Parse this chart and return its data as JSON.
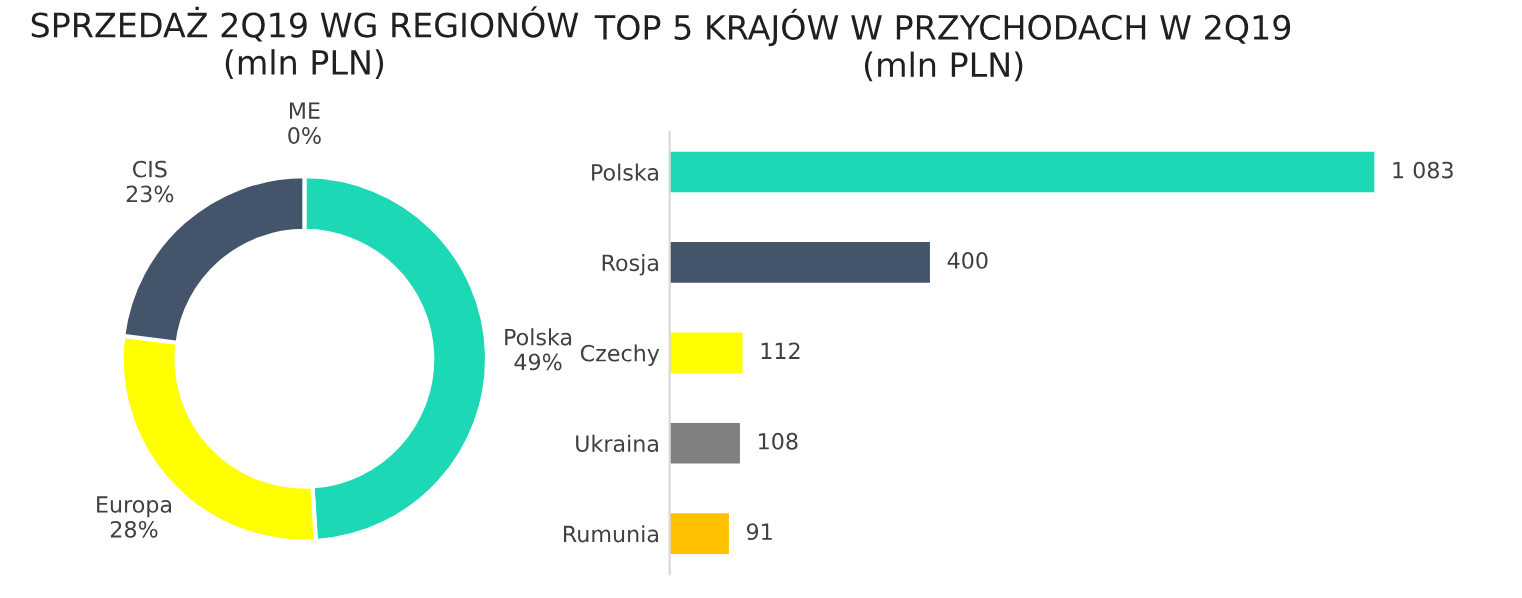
{
  "chart_data": [
    {
      "type": "donut",
      "title": "SPRZEDAŻ 2Q19 WG REGIONÓW\n(mln PLN)",
      "categories": [
        "ME",
        "Polska",
        "Europa",
        "CIS"
      ],
      "values": [
        0,
        49,
        28,
        23
      ],
      "value_labels": [
        "0%",
        "49%",
        "28%",
        "23%"
      ],
      "colors": [
        "#c00000",
        "#1dd8b5",
        "#ffff00",
        "#44546a"
      ]
    },
    {
      "type": "bar",
      "orientation": "horizontal",
      "title": "TOP 5 KRAJÓW W PRZYCHODACH W 2Q19\n(mln PLN)",
      "categories": [
        "Polska",
        "Rosja",
        "Czechy",
        "Ukraina",
        "Rumunia"
      ],
      "values": [
        1083,
        400,
        112,
        108,
        91
      ],
      "value_labels": [
        "1 083",
        "400",
        "112",
        "108",
        "91"
      ],
      "colors": [
        "#1dd8b5",
        "#44546a",
        "#ffff00",
        "#808080",
        "#ffc000"
      ]
    }
  ]
}
